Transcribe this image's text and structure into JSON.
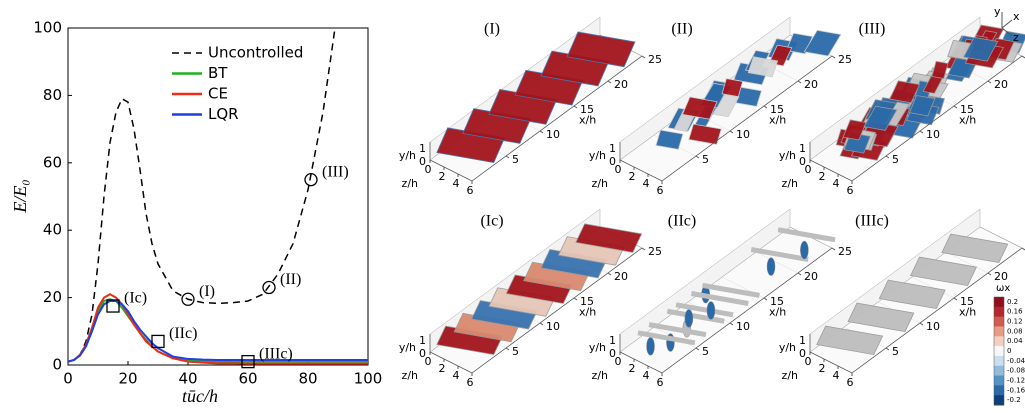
{
  "chart_data": {
    "type": "line",
    "xlabel": "tūc/h",
    "ylabel": "E/E₀",
    "x": [
      0,
      2,
      4,
      6,
      8,
      10,
      12,
      14,
      16,
      18,
      20,
      22,
      24,
      26,
      28,
      30,
      35,
      40,
      45,
      50,
      55,
      60,
      65,
      70,
      75,
      80,
      85,
      89,
      95,
      100
    ],
    "series": [
      {
        "name": "Uncontrolled",
        "color": "#000000",
        "dash": true,
        "values": [
          1,
          1.5,
          3,
          7,
          15,
          30,
          50,
          66,
          75,
          79,
          78,
          70,
          58,
          45,
          36,
          30,
          22,
          19.5,
          18.5,
          18.3,
          18.5,
          19,
          21,
          27,
          36,
          52,
          75,
          100,
          null,
          null
        ]
      },
      {
        "name": "BT",
        "color": "#1fb21f",
        "values": [
          1,
          1.5,
          3,
          6,
          11,
          16,
          19,
          19.5,
          19,
          17,
          14.5,
          12,
          9.5,
          7.5,
          5.5,
          4,
          2,
          1.3,
          1.1,
          1,
          1,
          1,
          1,
          1,
          1,
          1,
          1,
          1,
          1,
          1
        ]
      },
      {
        "name": "CE",
        "color": "#ee2a1b",
        "values": [
          1,
          1.5,
          3,
          6,
          11,
          17,
          20,
          21,
          20,
          18,
          15,
          12,
          9.5,
          7,
          5.5,
          4,
          2,
          1,
          0.7,
          0.5,
          0.5,
          0.4,
          0.4,
          0.4,
          0.4,
          0.4,
          0.4,
          0.4,
          0.4,
          0.4
        ]
      },
      {
        "name": "LQR",
        "color": "#1f3fe8",
        "values": [
          1,
          1.5,
          2.8,
          5.5,
          10,
          15,
          18,
          19,
          19,
          18,
          16,
          13,
          10.5,
          8.5,
          6.5,
          5,
          2.5,
          1.8,
          1.6,
          1.5,
          1.5,
          1.5,
          1.5,
          1.5,
          1.5,
          1.5,
          1.5,
          1.5,
          1.5,
          1.5
        ]
      }
    ],
    "xlim": [
      0,
      100
    ],
    "ylim": [
      0,
      100
    ],
    "xticks": [
      0,
      20,
      40,
      60,
      80,
      100
    ],
    "yticks": [
      0,
      20,
      40,
      60,
      80,
      100
    ],
    "annotations": [
      {
        "label": "(I)",
        "x": 40,
        "y": 19.5,
        "marker": "circle"
      },
      {
        "label": "(II)",
        "x": 67,
        "y": 23,
        "marker": "circle"
      },
      {
        "label": "(III)",
        "x": 81,
        "y": 55,
        "marker": "circle"
      },
      {
        "label": "(Ic)",
        "x": 15,
        "y": 17.5,
        "marker": "square"
      },
      {
        "label": "(IIc)",
        "x": 30,
        "y": 7,
        "marker": "square"
      },
      {
        "label": "(IIIc)",
        "x": 60,
        "y": 1,
        "marker": "square"
      }
    ]
  },
  "panels": [
    {
      "label": "(I)"
    },
    {
      "label": "(II)"
    },
    {
      "label": "(III)"
    },
    {
      "label": "(Ic)"
    },
    {
      "label": "(IIc)"
    },
    {
      "label": "(IIIc)"
    }
  ],
  "panel_axes": {
    "x_label": "x/h",
    "y_label": "y/h",
    "z_label": "z/h",
    "x_ticks": [
      5,
      10,
      15,
      20,
      25
    ],
    "z_ticks": [
      0,
      2,
      4,
      6
    ],
    "y_ticks": [
      0,
      1
    ]
  },
  "triad": {
    "y": "y",
    "x": "x",
    "z": "z"
  },
  "colorbar": {
    "title": "ωx",
    "ticks": [
      0.2,
      0.16,
      0.12,
      0.08,
      0.04,
      0,
      -0.04,
      -0.08,
      -0.12,
      -0.16,
      -0.2
    ]
  }
}
